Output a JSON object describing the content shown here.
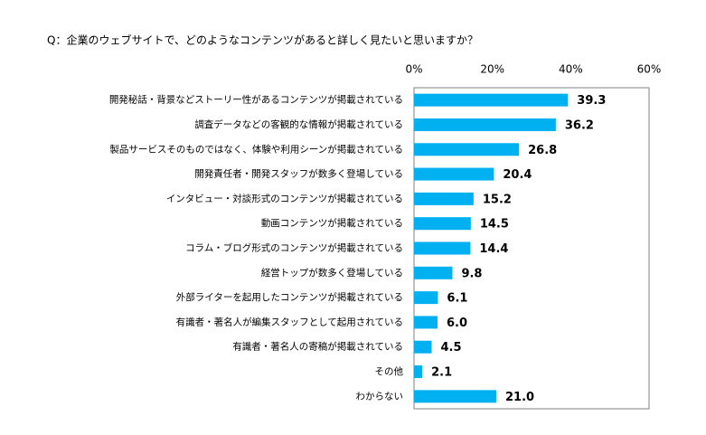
{
  "chart_data": {
    "type": "bar",
    "orientation": "horizontal",
    "title": "Q：企業のウェブサイトで、どのようなコンテンツがあると詳しく見たいと思いますか？",
    "categories": [
      "開発秘話・背景などストーリー性があるコンテンツが掲載されている",
      "調査データなどの客観的な情報が掲載されている",
      "製品サービスそのものではなく、体験や利用シーンが掲載されている",
      "開発責任者・開発スタッフが数多く登場している",
      "インタビュー・対談形式のコンテンツが掲載されている",
      "動画コンテンツが掲載されている",
      "コラム・ブログ形式のコンテンツが掲載されている",
      "経営トップが数多く登場している",
      "外部ライターを起用したコンテンツが掲載されている",
      "有識者・著名人が編集スタッフとして起用されている",
      "有識者・著名人の寄稿が掲載されている",
      "その他",
      "わからない"
    ],
    "values": [
      39.3,
      36.2,
      26.8,
      20.4,
      15.2,
      14.5,
      14.4,
      9.8,
      6.1,
      6.0,
      4.5,
      2.1,
      21.0
    ],
    "value_labels": [
      "39.3",
      "36.2",
      "26.8",
      "20.4",
      "15.2",
      "14.5",
      "14.4",
      "9.8",
      "6.1",
      "6.0",
      "4.5",
      "2.1",
      "21.0"
    ],
    "color": "#00b0f0",
    "xlim": [
      0,
      60
    ],
    "xticks": [
      {
        "value": 0,
        "label": "0%"
      },
      {
        "value": 20,
        "label": "20%"
      },
      {
        "value": 40,
        "label": "40%"
      },
      {
        "value": 60,
        "label": "60%"
      }
    ]
  }
}
